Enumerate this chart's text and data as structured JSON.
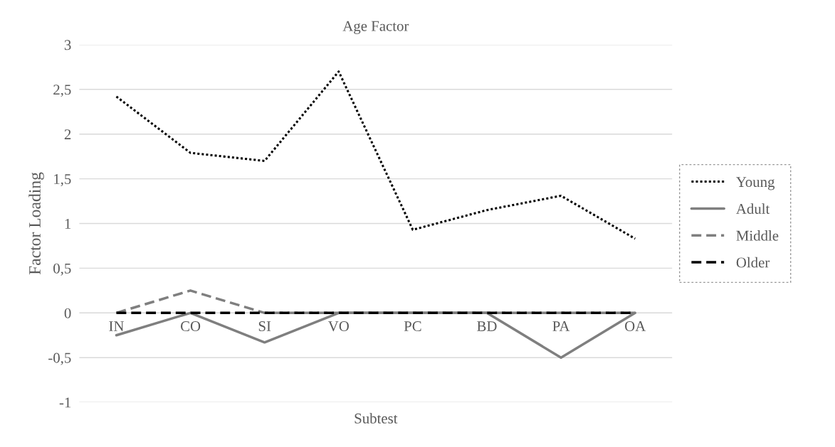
{
  "chart_data": {
    "type": "line",
    "title": "Age Factor",
    "xlabel": "Subtest",
    "ylabel": "Factor Loading",
    "categories": [
      "IN",
      "CO",
      "SI",
      "VO",
      "PC",
      "BD",
      "PA",
      "OA"
    ],
    "series": [
      {
        "name": "Young",
        "color": "#000000",
        "line_style": "dotted",
        "values": [
          2.42,
          1.79,
          1.7,
          2.7,
          0.93,
          1.15,
          1.31,
          0.83
        ]
      },
      {
        "name": "Adult",
        "color": "#7f7f7f",
        "line_style": "solid",
        "values": [
          -0.25,
          0,
          -0.33,
          0,
          0,
          0,
          -0.5,
          0
        ]
      },
      {
        "name": "Middle",
        "color": "#7f7f7f",
        "line_style": "dashed",
        "values": [
          0,
          0.25,
          0,
          0,
          0,
          0,
          0,
          0
        ]
      },
      {
        "name": "Older",
        "color": "#000000",
        "line_style": "dashed",
        "values": [
          0,
          0,
          0,
          0,
          0,
          0,
          0,
          0
        ]
      }
    ],
    "ylim": [
      -1,
      3
    ],
    "yticks": [
      {
        "value": -1,
        "label": "-1"
      },
      {
        "value": -0.5,
        "label": "-0,5"
      },
      {
        "value": 0,
        "label": "0"
      },
      {
        "value": 0.5,
        "label": "0,5"
      },
      {
        "value": 1,
        "label": "1"
      },
      {
        "value": 1.5,
        "label": "1,5"
      },
      {
        "value": 2,
        "label": "2"
      },
      {
        "value": 2.5,
        "label": "2,5"
      },
      {
        "value": 3,
        "label": "3"
      }
    ],
    "grid": "y",
    "legend": "right",
    "marker": "none"
  }
}
